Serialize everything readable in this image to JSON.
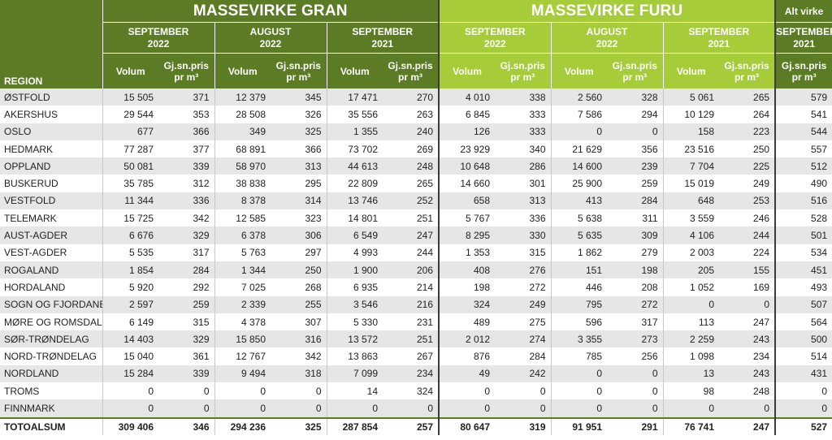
{
  "header": {
    "gran_title": "MASSEVIRKE GRAN",
    "furu_title": "MASSEVIRKE FURU",
    "alt_title": "Alt virke",
    "region_label": "REGION",
    "periods": [
      {
        "l1": "SEPTEMBER",
        "l2": "2022"
      },
      {
        "l1": "AUGUST",
        "l2": "2022"
      },
      {
        "l1": "SEPTEMBER",
        "l2": "2021"
      }
    ],
    "alt_period": {
      "l1": "SEPTEMBER",
      "l2": "2021"
    },
    "col_volum": "Volum",
    "col_pris_l1": "Gj.sn.pris",
    "col_pris_l2": "pr m³"
  },
  "rows": [
    {
      "region": "ØSTFOLD",
      "v": [
        "15 505",
        "371",
        "12 379",
        "345",
        "17 471",
        "270",
        "4 010",
        "338",
        "2 560",
        "328",
        "5 061",
        "265",
        "579"
      ]
    },
    {
      "region": "AKERSHUS",
      "v": [
        "29 544",
        "353",
        "28 508",
        "326",
        "35 556",
        "263",
        "6 845",
        "333",
        "7 586",
        "294",
        "10 129",
        "264",
        "541"
      ]
    },
    {
      "region": "OSLO",
      "v": [
        "677",
        "366",
        "349",
        "325",
        "1 355",
        "240",
        "126",
        "333",
        "0",
        "0",
        "158",
        "223",
        "544"
      ]
    },
    {
      "region": "HEDMARK",
      "v": [
        "77 287",
        "377",
        "68 891",
        "366",
        "73 702",
        "269",
        "23 929",
        "340",
        "21 629",
        "356",
        "23 516",
        "250",
        "557"
      ]
    },
    {
      "region": "OPPLAND",
      "v": [
        "50 081",
        "339",
        "58 970",
        "313",
        "44 613",
        "248",
        "10 648",
        "286",
        "14 600",
        "239",
        "7 704",
        "225",
        "512"
      ]
    },
    {
      "region": "BUSKERUD",
      "v": [
        "35 785",
        "312",
        "38 838",
        "295",
        "22 809",
        "265",
        "14 660",
        "301",
        "25 900",
        "259",
        "15 019",
        "249",
        "490"
      ]
    },
    {
      "region": "VESTFOLD",
      "v": [
        "11 344",
        "336",
        "8 378",
        "314",
        "13 746",
        "252",
        "658",
        "313",
        "413",
        "284",
        "648",
        "253",
        "516"
      ]
    },
    {
      "region": "TELEMARK",
      "v": [
        "15 725",
        "342",
        "12 585",
        "323",
        "14 801",
        "251",
        "5 767",
        "336",
        "5 638",
        "311",
        "3 559",
        "246",
        "528"
      ]
    },
    {
      "region": "AUST-AGDER",
      "v": [
        "6 676",
        "329",
        "6 378",
        "306",
        "6 549",
        "247",
        "8 295",
        "330",
        "5 635",
        "309",
        "4 106",
        "244",
        "501"
      ]
    },
    {
      "region": "VEST-AGDER",
      "v": [
        "5 535",
        "317",
        "5 763",
        "297",
        "4 993",
        "244",
        "1 353",
        "315",
        "1 862",
        "279",
        "2 003",
        "224",
        "534"
      ]
    },
    {
      "region": "ROGALAND",
      "v": [
        "1 854",
        "284",
        "1 344",
        "250",
        "1 900",
        "206",
        "408",
        "276",
        "151",
        "198",
        "205",
        "155",
        "451"
      ]
    },
    {
      "region": "HORDALAND",
      "v": [
        "5 920",
        "292",
        "7 025",
        "268",
        "6 935",
        "214",
        "198",
        "272",
        "446",
        "208",
        "1 052",
        "169",
        "493"
      ]
    },
    {
      "region": "SOGN OG FJORDANE",
      "v": [
        "2 597",
        "259",
        "2 339",
        "255",
        "3 546",
        "216",
        "324",
        "249",
        "795",
        "272",
        "0",
        "0",
        "507"
      ]
    },
    {
      "region": "MØRE OG ROMSDAL",
      "v": [
        "6 149",
        "315",
        "4 378",
        "307",
        "5 330",
        "231",
        "489",
        "275",
        "596",
        "317",
        "113",
        "247",
        "564"
      ]
    },
    {
      "region": "SØR-TRØNDELAG",
      "v": [
        "14 403",
        "329",
        "15 850",
        "316",
        "13 572",
        "251",
        "2 012",
        "274",
        "3 355",
        "273",
        "2 259",
        "243",
        "500"
      ]
    },
    {
      "region": "NORD-TRØNDELAG",
      "v": [
        "15 040",
        "361",
        "12 767",
        "342",
        "13 863",
        "267",
        "876",
        "284",
        "785",
        "256",
        "1 098",
        "234",
        "514"
      ]
    },
    {
      "region": "NORDLAND",
      "v": [
        "15 284",
        "339",
        "9 494",
        "318",
        "7 099",
        "234",
        "49",
        "242",
        "0",
        "0",
        "13",
        "243",
        "431"
      ]
    },
    {
      "region": "TROMS",
      "v": [
        "0",
        "0",
        "0",
        "0",
        "14",
        "324",
        "0",
        "0",
        "0",
        "0",
        "98",
        "248",
        "0"
      ]
    },
    {
      "region": "FINNMARK",
      "v": [
        "0",
        "0",
        "0",
        "0",
        "0",
        "0",
        "0",
        "0",
        "0",
        "0",
        "0",
        "0",
        "0"
      ]
    },
    {
      "region": "TOTOALSUM",
      "v": [
        "309 406",
        "346",
        "294 236",
        "325",
        "287 854",
        "257",
        "80 647",
        "319",
        "91 951",
        "291",
        "76 741",
        "247",
        "527"
      ]
    }
  ],
  "colors": {
    "gran": "#5b7c24",
    "furu": "#a6cc3a",
    "row_alt": "#e6e6e6"
  }
}
